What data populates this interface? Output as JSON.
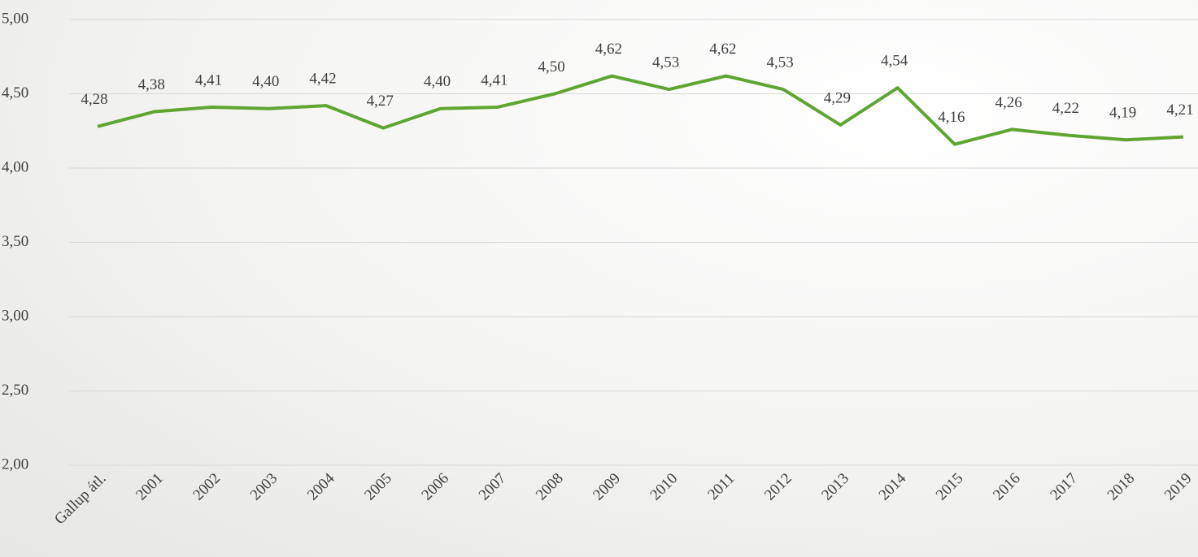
{
  "chart_data": {
    "type": "line",
    "categories": [
      "Gallup átl.",
      "2001",
      "2002",
      "2003",
      "2004",
      "2005",
      "2006",
      "2007",
      "2008",
      "2009",
      "2010",
      "2011",
      "2012",
      "2013",
      "2014",
      "2015",
      "2016",
      "2017",
      "2018",
      "2019"
    ],
    "series": [
      {
        "name": null,
        "color": "#5ea532",
        "values": [
          4.28,
          4.38,
          4.41,
          4.4,
          4.42,
          4.27,
          4.4,
          4.41,
          4.5,
          4.62,
          4.53,
          4.62,
          4.53,
          4.29,
          4.54,
          4.16,
          4.26,
          4.22,
          4.19,
          4.21
        ],
        "value_labels": [
          "4,28",
          "4,38",
          "4,41",
          "4,40",
          "4,42",
          "4,27",
          "4,40",
          "4,41",
          "4,50",
          "4,62",
          "4,53",
          "4,62",
          "4,53",
          "4,29",
          "4,54",
          "4,16",
          "4,26",
          "4,22",
          "4,19",
          "4,21"
        ]
      }
    ],
    "ylim": [
      2.0,
      5.0
    ],
    "yticks": [
      {
        "value": 2.0,
        "label": "2,00"
      },
      {
        "value": 2.5,
        "label": "2,50"
      },
      {
        "value": 3.0,
        "label": "3,00"
      },
      {
        "value": 3.5,
        "label": "3,50"
      },
      {
        "value": 4.0,
        "label": "4,00"
      },
      {
        "value": 4.5,
        "label": "4,50"
      },
      {
        "value": 5.0,
        "label": "5,00"
      }
    ],
    "grid": true
  }
}
